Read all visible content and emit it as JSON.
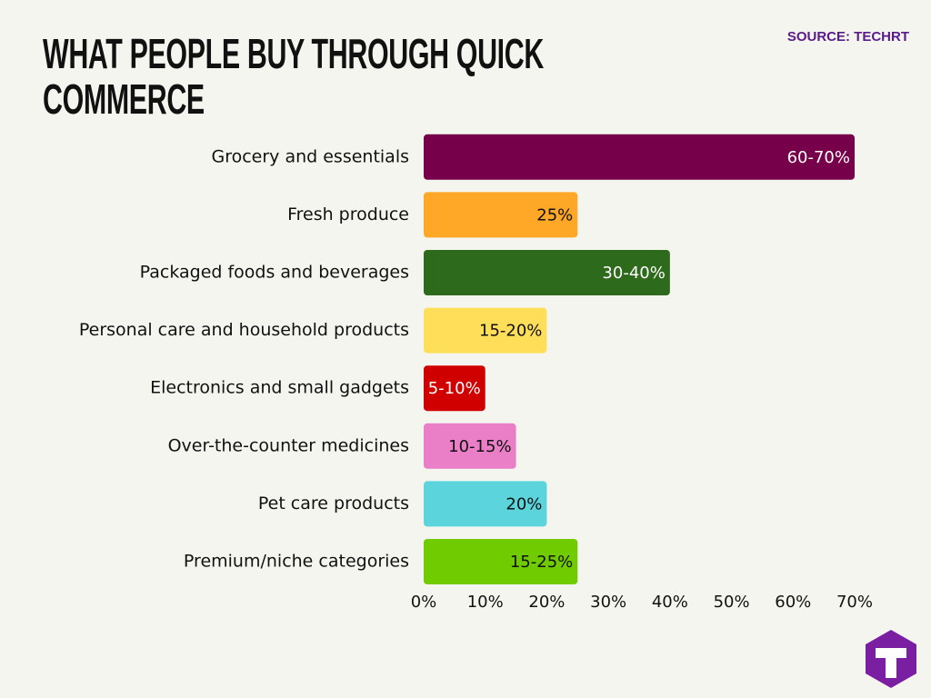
{
  "chart_data": {
    "type": "bar",
    "orientation": "horizontal",
    "title": "WHAT PEOPLE BUY THROUGH QUICK COMMERCE",
    "source": "SOURCE: TECHRT",
    "categories": [
      "Grocery and essentials",
      "Fresh produce",
      "Packaged foods and beverages",
      "Personal care and household products",
      "Electronics and small gadgets",
      "Over-the-counter medicines",
      "Pet care products",
      "Premium/niche categories"
    ],
    "values": [
      70,
      25,
      40,
      20,
      10,
      15,
      20,
      25
    ],
    "value_labels": [
      "60-70%",
      "25%",
      "30-40%",
      "15-20%",
      "5-10%",
      "10-15%",
      "20%",
      "15-25%"
    ],
    "colors": [
      "#76004a",
      "#ffa726",
      "#2e6a1b",
      "#ffde59",
      "#d10000",
      "#ea7fc8",
      "#5bd5db",
      "#70cc00"
    ],
    "xlim": [
      0,
      70
    ],
    "xticks": [
      {
        "value": 0,
        "label": "0%"
      },
      {
        "value": 10,
        "label": "10%"
      },
      {
        "value": 20,
        "label": "20%"
      },
      {
        "value": 30,
        "label": "30%"
      },
      {
        "value": 40,
        "label": "40%"
      },
      {
        "value": 50,
        "label": "50%"
      },
      {
        "value": 60,
        "label": "60%"
      },
      {
        "value": 70,
        "label": "70%"
      }
    ],
    "grid": false
  }
}
